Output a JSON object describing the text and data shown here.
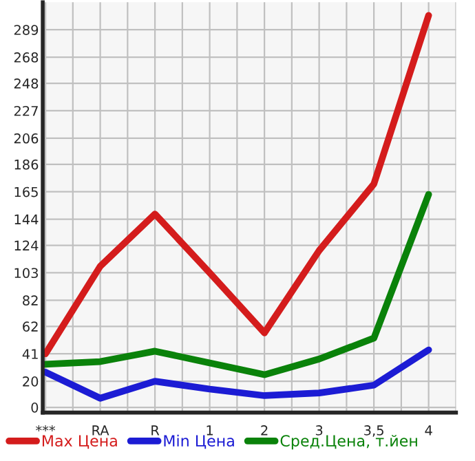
{
  "chart_data": {
    "type": "line",
    "categories": [
      "***",
      "RA",
      "R",
      "1",
      "2",
      "3",
      "3,5",
      "4"
    ],
    "series": [
      {
        "name": "Max Цена",
        "color": "#d41c1c",
        "values": [
          41,
          108,
          148,
          103,
          57,
          120,
          171,
          300
        ]
      },
      {
        "name": "Min Цена",
        "color": "#1c1cd4",
        "values": [
          27,
          7,
          20,
          14,
          9,
          11,
          17,
          44
        ]
      },
      {
        "name": "Сред.Цена, т.йен",
        "color": "#0a820a",
        "values": [
          33,
          35,
          43,
          34,
          25,
          37,
          53,
          163
        ]
      }
    ],
    "ylim": [
      -4,
      310
    ],
    "yticks": [
      0,
      20,
      41,
      62,
      82,
      103,
      124,
      144,
      165,
      186,
      206,
      227,
      248,
      268,
      289
    ],
    "grid": true,
    "legend": "bottom",
    "marker": "none",
    "line_style": "solid"
  }
}
